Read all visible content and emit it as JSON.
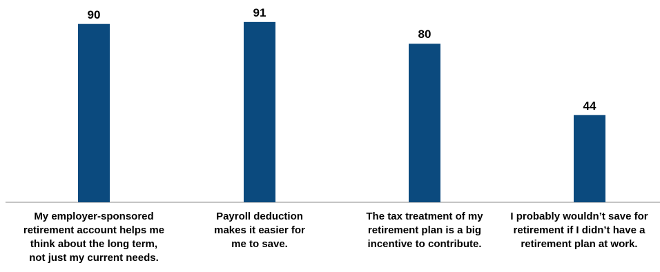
{
  "chart_data": {
    "type": "bar",
    "categories": [
      "My employer-sponsored\nretirement account helps me\nthink about the long term,\nnot just my current needs.",
      "Payroll deduction\nmakes it easier for\nme to save.",
      "The tax treatment of my\nretirement plan is a big\nincentive to contribute.",
      "I probably wouldn’t save for\nretirement if I didn’t have a\nretirement plan at work."
    ],
    "values": [
      90,
      91,
      80,
      44
    ],
    "data_labels": [
      "90",
      "91",
      "80",
      "44"
    ],
    "title": "",
    "xlabel": "",
    "ylabel": "",
    "ylim": [
      0,
      100
    ],
    "grid": false,
    "legend": "none",
    "colors": {
      "bar": "#0b4a7e",
      "axis": "#b0b0b0",
      "text": "#000000"
    }
  }
}
